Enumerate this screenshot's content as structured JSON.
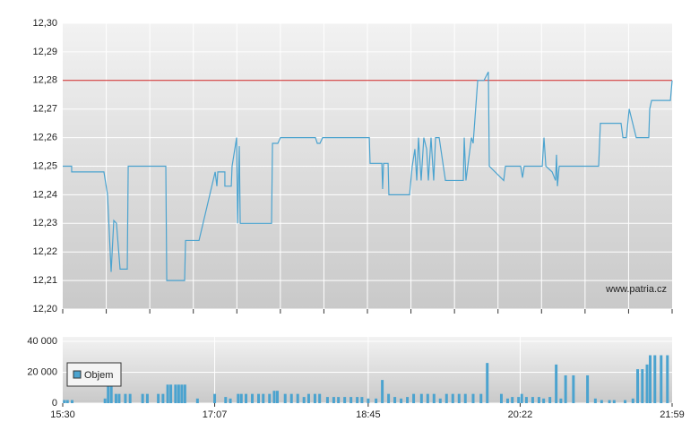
{
  "chart_data": [
    {
      "type": "line",
      "color": "#4ba3cf",
      "xlim": [
        0,
        389
      ],
      "ylim": [
        12.2,
        12.3
      ],
      "yticks": [
        {
          "value": 12.2,
          "label": "12,20"
        },
        {
          "value": 12.21,
          "label": "12,21"
        },
        {
          "value": 12.22,
          "label": "12,22"
        },
        {
          "value": 12.23,
          "label": "12,23"
        },
        {
          "value": 12.24,
          "label": "12,24"
        },
        {
          "value": 12.25,
          "label": "12,25"
        },
        {
          "value": 12.26,
          "label": "12,26"
        },
        {
          "value": 12.27,
          "label": "12,27"
        },
        {
          "value": 12.28,
          "label": "12,28"
        },
        {
          "value": 12.29,
          "label": "12,29"
        },
        {
          "value": 12.3,
          "label": "12,30"
        }
      ],
      "grid": true,
      "reference_line": {
        "value": 12.28,
        "color": "#cc2222"
      },
      "annotation": "www.patria.cz",
      "x": [
        0,
        5.7,
        5.7,
        26.3,
        28.6,
        30.9,
        32.6,
        34.3,
        36.6,
        41.2,
        41.8,
        65.8,
        66.4,
        77.8,
        78.4,
        87,
        97.3,
        98.4,
        99,
        103.5,
        103.5,
        107.6,
        108.1,
        111,
        111.6,
        112.7,
        113.3,
        133.3,
        133.9,
        137.3,
        139,
        161.3,
        162.5,
        164.2,
        165.9,
        195.7,
        196.2,
        203.7,
        204.2,
        204.8,
        207.7,
        208.2,
        221.4,
        223.1,
        224.8,
        226,
        227.1,
        228.8,
        230.5,
        232.3,
        233.4,
        235.1,
        236.8,
        238,
        240.3,
        244.3,
        255.7,
        256.3,
        257.4,
        260.9,
        262,
        264.9,
        268.9,
        271.7,
        272.3,
        281.5,
        282.6,
        292.3,
        293.5,
        294.6,
        306.1,
        307.2,
        308.4,
        312.4,
        314.6,
        315.2,
        315.8,
        316.9,
        342.1,
        343.2,
        356.4,
        357.6,
        359.8,
        361.6,
        366.1,
        374.1,
        374.7,
        375.9,
        387.9,
        389
      ],
      "values": [
        12.25,
        12.25,
        12.248,
        12.248,
        12.24,
        12.213,
        12.231,
        12.23,
        12.214,
        12.214,
        12.25,
        12.25,
        12.21,
        12.21,
        12.224,
        12.224,
        12.248,
        12.243,
        12.248,
        12.248,
        12.243,
        12.243,
        12.25,
        12.26,
        12.23,
        12.257,
        12.23,
        12.23,
        12.258,
        12.258,
        12.26,
        12.26,
        12.258,
        12.258,
        12.26,
        12.26,
        12.251,
        12.251,
        12.242,
        12.251,
        12.251,
        12.24,
        12.24,
        12.25,
        12.256,
        12.245,
        12.26,
        12.245,
        12.26,
        12.256,
        12.245,
        12.26,
        12.245,
        12.26,
        12.26,
        12.245,
        12.245,
        12.26,
        12.245,
        12.26,
        12.258,
        12.28,
        12.28,
        12.283,
        12.25,
        12.245,
        12.25,
        12.25,
        12.246,
        12.25,
        12.25,
        12.26,
        12.25,
        12.248,
        12.245,
        12.254,
        12.243,
        12.25,
        12.25,
        12.265,
        12.265,
        12.26,
        12.26,
        12.27,
        12.26,
        12.26,
        12.27,
        12.273,
        12.273,
        12.28
      ]
    },
    {
      "type": "bar",
      "xlim": [
        0,
        389
      ],
      "xticks": [
        {
          "value": 0,
          "label": "15:30"
        },
        {
          "value": 97,
          "label": "17:07"
        },
        {
          "value": 195,
          "label": "18:45"
        },
        {
          "value": 292,
          "label": "20:22"
        },
        {
          "value": 389,
          "label": "21:59"
        }
      ],
      "ylim": [
        0,
        40000
      ],
      "yticks": [
        0,
        {
          "value": 20000,
          "label": "20 000"
        },
        {
          "value": 40000,
          "label": "40 000"
        }
      ],
      "grid": true,
      "legend": "upper-left",
      "x": [
        1,
        3,
        6,
        27,
        29,
        31,
        34,
        36,
        40,
        43,
        51,
        54,
        61,
        64,
        67,
        69,
        72,
        74,
        76,
        78,
        86,
        97,
        104,
        107,
        112,
        114,
        117,
        121,
        125,
        128,
        132,
        135,
        137,
        142,
        146,
        150,
        154,
        157,
        161,
        164,
        169,
        173,
        176,
        180,
        184,
        188,
        191,
        195,
        200,
        204,
        208,
        212,
        216,
        220,
        224,
        229,
        233,
        237,
        241,
        245,
        249,
        253,
        257,
        262,
        267,
        271,
        280,
        284,
        287,
        291,
        293,
        296,
        300,
        304,
        307,
        311,
        315,
        318,
        321,
        326,
        335,
        340,
        344,
        349,
        352,
        359,
        364,
        367,
        370,
        373,
        375,
        378,
        382,
        386
      ],
      "series": [
        {
          "name": "Objem",
          "color": "#4ba3cf",
          "values": [
            2000,
            2000,
            2000,
            3000,
            12000,
            12000,
            6000,
            6000,
            6000,
            6000,
            6000,
            6000,
            6000,
            6000,
            12000,
            12000,
            12000,
            12000,
            12000,
            12000,
            3000,
            6000,
            4000,
            3000,
            6000,
            6000,
            6000,
            6000,
            6000,
            6000,
            6000,
            8000,
            8000,
            6000,
            6000,
            6000,
            4000,
            6000,
            6000,
            6000,
            4000,
            4000,
            4000,
            4000,
            4000,
            4000,
            4000,
            3000,
            3000,
            15000,
            6000,
            4000,
            3000,
            4000,
            6000,
            6000,
            6000,
            6000,
            3000,
            6000,
            6000,
            6000,
            6000,
            6000,
            6000,
            26000,
            6000,
            3000,
            4000,
            4000,
            6000,
            4000,
            4000,
            4000,
            3000,
            4000,
            25000,
            3000,
            18000,
            18000,
            18000,
            3000,
            2000,
            2000,
            2000,
            2000,
            3000,
            22000,
            22000,
            25000,
            31000,
            31000,
            31000,
            31000
          ]
        }
      ]
    }
  ]
}
